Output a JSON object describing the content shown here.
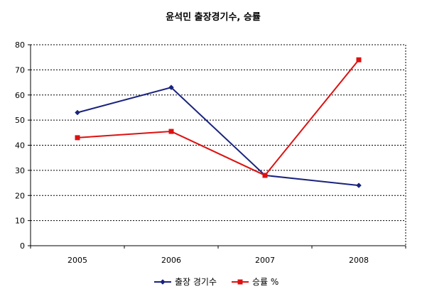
{
  "chart_data": {
    "type": "line",
    "title": "윤석민 출장경기수, 승률",
    "categories": [
      "2005",
      "2006",
      "2007",
      "2008"
    ],
    "y_ticks": [
      "0",
      "10",
      "20",
      "30",
      "40",
      "50",
      "60",
      "70",
      "80"
    ],
    "ylim": [
      0,
      80
    ],
    "grid": true,
    "legend_position": "bottom",
    "series": [
      {
        "name": "출장 경기수",
        "values": [
          53,
          63,
          28,
          24
        ],
        "color": "#1a237e",
        "marker": "diamond"
      },
      {
        "name": "승률 %",
        "values": [
          43,
          45.5,
          28,
          74
        ],
        "color": "#dd1111",
        "marker": "square"
      }
    ]
  }
}
